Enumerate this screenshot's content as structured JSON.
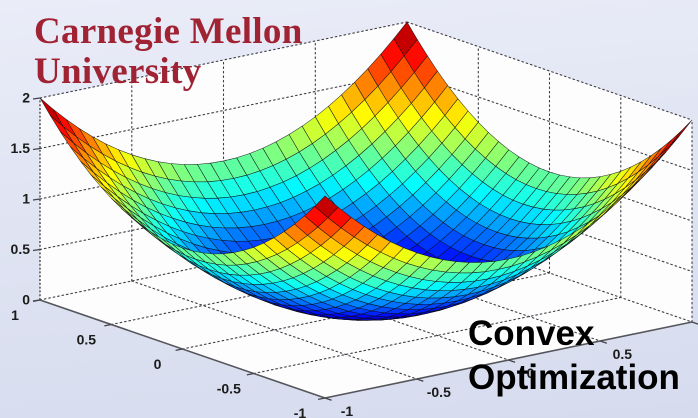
{
  "branding": {
    "line1": "Carnegie Mellon",
    "line2": "University",
    "color": "#a02334"
  },
  "caption": {
    "line1": "Convex",
    "line2": "Optimization",
    "color": "#000000"
  },
  "chart_data": {
    "type": "surface",
    "title": "",
    "function": "z = x^2 + y^2",
    "z_function": {
      "form": "paraboloid",
      "coeff_x2": 1,
      "coeff_y2": 1
    },
    "x_range": [
      -1,
      1
    ],
    "y_range": [
      -1,
      1
    ],
    "z_range": [
      0,
      2
    ],
    "mesh_divisions": 28,
    "colormap": "jet",
    "grid": true,
    "view": {
      "azimuth": -37.5,
      "elevation": 30
    },
    "x_ticks": [
      1,
      0.5,
      0,
      -0.5,
      -1
    ],
    "x_tick_labels": [
      "1",
      "0.5",
      "0",
      "-0.5",
      "-1"
    ],
    "y_ticks": [
      -1,
      -0.5,
      0,
      0.5,
      1
    ],
    "y_tick_labels": [
      "-1",
      "-0.5",
      "0",
      "0.5",
      "1"
    ],
    "z_ticks": [
      0,
      0.5,
      1,
      1.5,
      2
    ],
    "z_tick_labels": [
      "0",
      "0.5",
      "1",
      "1.5",
      "2"
    ],
    "colors": {
      "wall_fill": "#fdfdfe",
      "grid_line": "#3f3f46",
      "axis_line": "#55555c",
      "tick_text": "#1b1b1b",
      "mesh_edge": "#0d0d12"
    }
  }
}
